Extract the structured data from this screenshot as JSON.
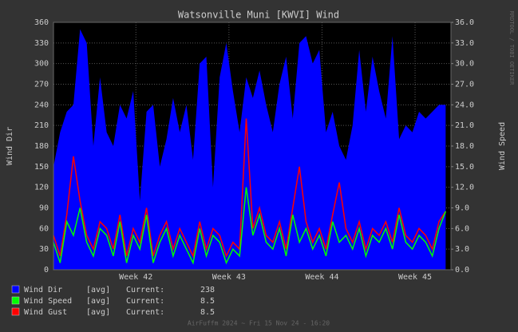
{
  "chart_data": {
    "type": "area-line",
    "title": "Watsonville Muni [KWVI] Wind",
    "ylabel": "Wind Dir",
    "y2label": "Wind Speed",
    "watermark": "RRDTOOL / TOBI OETIKER",
    "footer": "AirFuffm 2024 ~ Fri 15 Nov 24 - 16:20",
    "xlim": [
      0,
      29.9
    ],
    "xticks": [
      {
        "value": 6.2,
        "label": "Week 42"
      },
      {
        "value": 13.2,
        "label": "Week 43"
      },
      {
        "value": 20.2,
        "label": "Week 44"
      },
      {
        "value": 27.2,
        "label": "Week 45"
      }
    ],
    "ylim": [
      0,
      360
    ],
    "yticks": [
      0,
      30,
      60,
      90,
      120,
      150,
      180,
      210,
      240,
      270,
      300,
      330,
      360
    ],
    "y2lim": [
      0,
      36
    ],
    "y2ticks": [
      {
        "value": 0,
        "label": "0.0"
      },
      {
        "value": 3,
        "label": "3.0"
      },
      {
        "value": 6,
        "label": "6.0"
      },
      {
        "value": 9,
        "label": "9.0"
      },
      {
        "value": 12,
        "label": "12.0"
      },
      {
        "value": 15,
        "label": "15.0"
      },
      {
        "value": 18,
        "label": "18.0"
      },
      {
        "value": 21,
        "label": "21.0"
      },
      {
        "value": 24,
        "label": "24.0"
      },
      {
        "value": 27,
        "label": "27.0"
      },
      {
        "value": 30,
        "label": "30.0"
      },
      {
        "value": 33,
        "label": "33.0"
      },
      {
        "value": 36,
        "label": "36.0"
      }
    ],
    "grid": true,
    "x": [
      0,
      0.5,
      1,
      1.5,
      2,
      2.5,
      3,
      3.5,
      4,
      4.5,
      5,
      5.5,
      6,
      6.5,
      7,
      7.5,
      8,
      8.5,
      9,
      9.5,
      10,
      10.5,
      11,
      11.5,
      12,
      12.5,
      13,
      13.5,
      14,
      14.5,
      15,
      15.5,
      16,
      16.5,
      17,
      17.5,
      18,
      18.5,
      19,
      19.5,
      20,
      20.5,
      21,
      21.5,
      22,
      22.5,
      23,
      23.5,
      24,
      24.5,
      25,
      25.5,
      26,
      26.5,
      27,
      27.5,
      28,
      28.5,
      29,
      29.5
    ],
    "series": [
      {
        "name": "Wind Dir",
        "cf": "[avg]",
        "stat": "Current:",
        "current": 238,
        "color": "#0000ff",
        "style": "area",
        "values": [
          150,
          200,
          230,
          240,
          350,
          330,
          180,
          280,
          200,
          180,
          240,
          220,
          260,
          100,
          230,
          240,
          150,
          190,
          250,
          200,
          240,
          160,
          300,
          310,
          120,
          280,
          330,
          260,
          200,
          280,
          250,
          290,
          240,
          200,
          270,
          310,
          220,
          330,
          340,
          300,
          320,
          200,
          230,
          180,
          160,
          210,
          320,
          230,
          310,
          260,
          220,
          340,
          190,
          210,
          200,
          230,
          220,
          230,
          240,
          240
        ]
      },
      {
        "name": "Wind Speed",
        "cf": "[avg]",
        "stat": "Current:",
        "current": 8.5,
        "color": "#00ff00",
        "style": "line",
        "axis": "y2",
        "values": [
          4,
          1,
          7,
          5,
          9,
          4,
          2,
          6,
          5,
          2,
          7,
          1,
          5,
          3,
          8,
          1,
          4,
          6,
          2,
          5,
          3,
          1,
          6,
          2,
          5,
          4,
          1,
          3,
          2,
          12,
          5,
          8,
          4,
          3,
          6,
          2,
          8,
          4,
          6,
          3,
          5,
          2,
          7,
          4,
          5,
          3,
          6,
          2,
          5,
          4,
          6,
          3,
          8,
          4,
          3,
          5,
          4,
          2,
          6,
          8.5
        ]
      },
      {
        "name": "Wind Gust",
        "cf": "[avg]",
        "stat": "Current:",
        "current": 8.5,
        "color": "#ff0000",
        "style": "line",
        "axis": "y2",
        "values": [
          5,
          2,
          8,
          16.5,
          10,
          5,
          3,
          7,
          6,
          3,
          8,
          2,
          6,
          4,
          9,
          2,
          5,
          7,
          3,
          6,
          4,
          2,
          7,
          3,
          6,
          5,
          2,
          4,
          3,
          22,
          6,
          9,
          5,
          4,
          7,
          3,
          9,
          15,
          7,
          4,
          6,
          3,
          8,
          12.7,
          6,
          4,
          7,
          3,
          6,
          5,
          7,
          4,
          9,
          5,
          4,
          6,
          5,
          3,
          7,
          8.5
        ]
      }
    ]
  }
}
